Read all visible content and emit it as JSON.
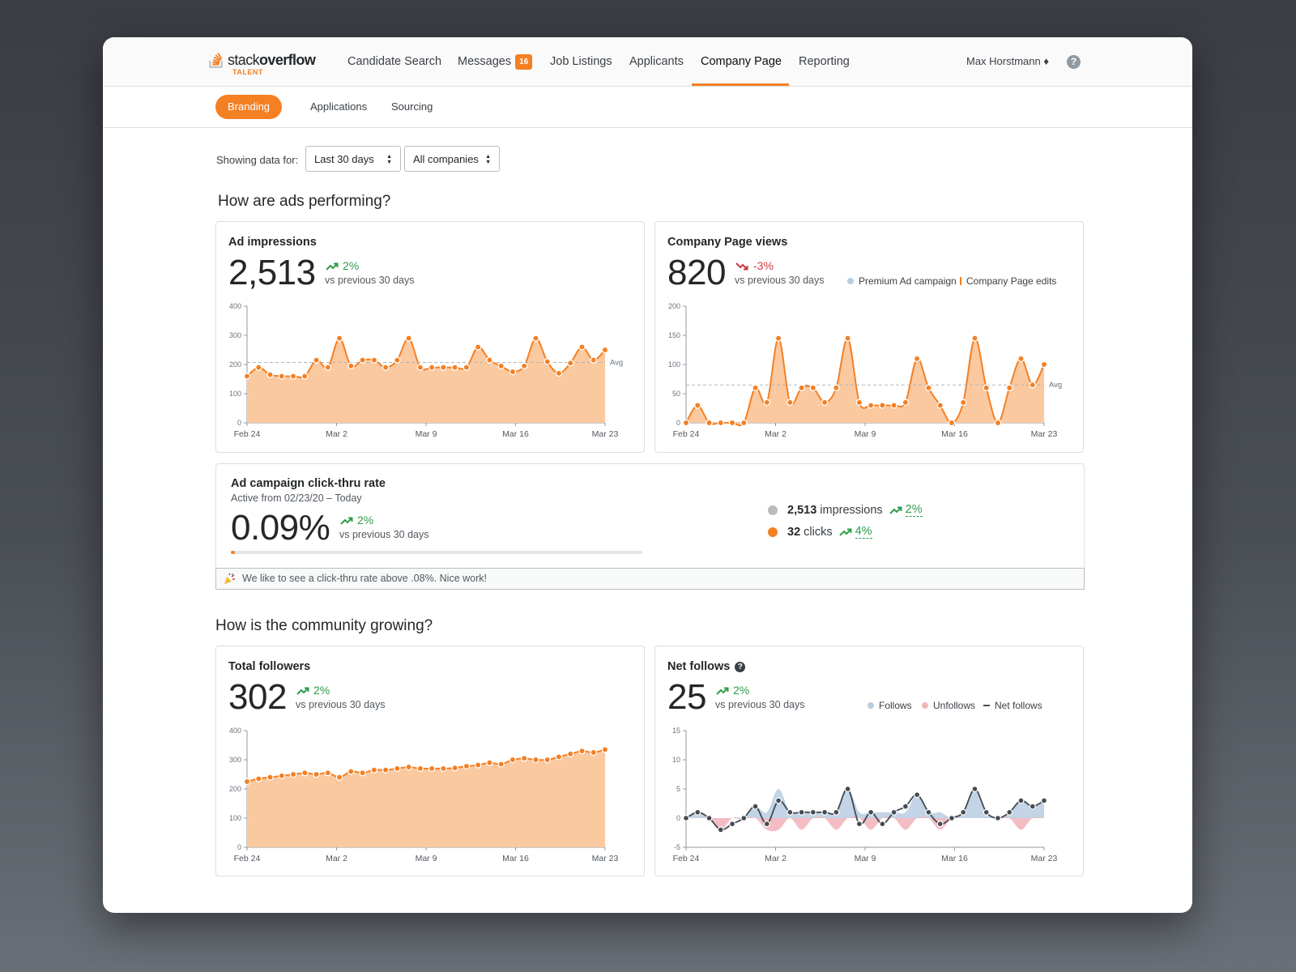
{
  "brand": {
    "logo_text_light": "stack",
    "logo_text_bold": "overflow",
    "logo_sub": "TALENT"
  },
  "nav": {
    "items": [
      {
        "label": "Candidate Search"
      },
      {
        "label": "Messages",
        "badge": "16"
      },
      {
        "label": "Job Listings"
      },
      {
        "label": "Applicants"
      },
      {
        "label": "Company Page"
      },
      {
        "label": "Reporting"
      }
    ],
    "active": "Company Page",
    "user": "Max Horstmann ♦",
    "help_icon": "?"
  },
  "subnav": {
    "items": [
      "Branding",
      "Applications",
      "Sourcing"
    ],
    "active": "Branding"
  },
  "filters": {
    "label": "Showing data for:",
    "range": "Last 30 days",
    "company": "All companies"
  },
  "sections": {
    "ads": "How are ads performing?",
    "community": "How is the community growing?"
  },
  "colors": {
    "accent": "#f48024",
    "area": "#fbc9a0",
    "up": "#2f9c4a",
    "down": "#d1383d",
    "follows": "#b7cde0",
    "unfollows": "#f2b6bd",
    "net": "#444b52"
  },
  "ad_impressions": {
    "title": "Ad impressions",
    "value": "2,513",
    "delta": "2%",
    "vs": "vs previous 30 days",
    "avg_label": "Avg"
  },
  "page_views": {
    "title": "Company Page views",
    "value": "820",
    "delta": "-3%",
    "vs": "vs previous 30 days",
    "legend_campaign": "Premium Ad campaign",
    "legend_edits": "Company Page edits",
    "avg_label": "Avg"
  },
  "ctr": {
    "title": "Ad campaign click-thru rate",
    "subtitle": "Active from 02/23/20 – Today",
    "value": "0.09%",
    "delta": "2%",
    "vs": "vs previous 30 days",
    "progress": 0.01,
    "impressions_value": "2,513",
    "impressions_label": "impressions",
    "impressions_delta": "2%",
    "clicks_value": "32",
    "clicks_label": "clicks",
    "clicks_delta": "4%",
    "note": "We like to see a click-thru rate above .08%. Nice work!"
  },
  "followers": {
    "title": "Total followers",
    "value": "302",
    "delta": "2%",
    "vs": "vs previous 30 days"
  },
  "net_follows": {
    "title": "Net follows",
    "value": "25",
    "delta": "2%",
    "vs": "vs previous 30 days",
    "legend_follows": "Follows",
    "legend_unfollows": "Unfollows",
    "legend_net": "Net follows"
  },
  "chart_data": [
    {
      "type": "area",
      "name": "ad-impressions",
      "x_labels": [
        "Feb 24",
        "Mar 2",
        "Mar 9",
        "Mar 16",
        "Mar 23"
      ],
      "ylim": [
        0,
        400
      ],
      "yticks": [
        0,
        100,
        200,
        300,
        400
      ],
      "avg": 207,
      "values": [
        160,
        190,
        165,
        160,
        160,
        160,
        215,
        190,
        290,
        195,
        215,
        215,
        190,
        215,
        290,
        190,
        190,
        190,
        190,
        190,
        260,
        215,
        195,
        175,
        195,
        290,
        210,
        170,
        205,
        260,
        215,
        250
      ]
    },
    {
      "type": "area",
      "name": "company-page-views",
      "x_labels": [
        "Feb 24",
        "Mar 2",
        "Mar 9",
        "Mar 16",
        "Mar 23"
      ],
      "ylim": [
        0,
        200
      ],
      "yticks": [
        0,
        50,
        100,
        150,
        200
      ],
      "avg": 65,
      "values": [
        0,
        30,
        0,
        0,
        0,
        0,
        60,
        35,
        145,
        35,
        60,
        60,
        35,
        60,
        145,
        35,
        30,
        30,
        30,
        35,
        110,
        60,
        30,
        0,
        35,
        145,
        60,
        0,
        60,
        110,
        65,
        100
      ]
    },
    {
      "type": "area",
      "name": "total-followers",
      "x_labels": [
        "Feb 24",
        "Mar 2",
        "Mar 9",
        "Mar 16",
        "Mar 23"
      ],
      "ylim": [
        0,
        400
      ],
      "yticks": [
        0,
        100,
        200,
        300,
        400
      ],
      "values": [
        225,
        235,
        240,
        245,
        250,
        255,
        250,
        255,
        240,
        260,
        255,
        265,
        265,
        270,
        275,
        270,
        270,
        270,
        272,
        278,
        282,
        290,
        285,
        300,
        305,
        300,
        300,
        310,
        320,
        330,
        325,
        335
      ]
    },
    {
      "type": "line",
      "name": "net-follows",
      "x_labels": [
        "Feb 24",
        "Mar 2",
        "Mar 9",
        "Mar 16",
        "Mar 23"
      ],
      "ylim": [
        -5,
        15
      ],
      "yticks": [
        -5,
        0,
        5,
        10,
        15
      ],
      "series": [
        {
          "name": "Follows",
          "values": [
            0,
            1,
            0,
            0,
            0,
            0,
            2,
            1,
            5,
            1,
            1,
            1,
            1,
            1,
            5,
            1,
            1,
            1,
            1,
            1,
            4,
            1,
            1,
            0,
            1,
            5,
            1,
            0,
            1,
            3,
            2,
            3
          ]
        },
        {
          "name": "Unfollows",
          "values": [
            0,
            0,
            0,
            -2,
            0,
            0,
            0,
            -2,
            -2,
            0,
            -2,
            0,
            0,
            -2,
            0,
            0,
            -2,
            0,
            0,
            -2,
            0,
            0,
            -2,
            0,
            0,
            0,
            0,
            0,
            0,
            -2,
            0,
            0
          ]
        },
        {
          "name": "Net follows",
          "values": [
            0,
            1,
            0,
            -2,
            -1,
            0,
            2,
            -1,
            3,
            1,
            1,
            1,
            1,
            1,
            5,
            -1,
            1,
            -1,
            1,
            2,
            4,
            1,
            -1,
            0,
            1,
            5,
            1,
            0,
            1,
            3,
            2,
            3
          ]
        }
      ]
    }
  ]
}
